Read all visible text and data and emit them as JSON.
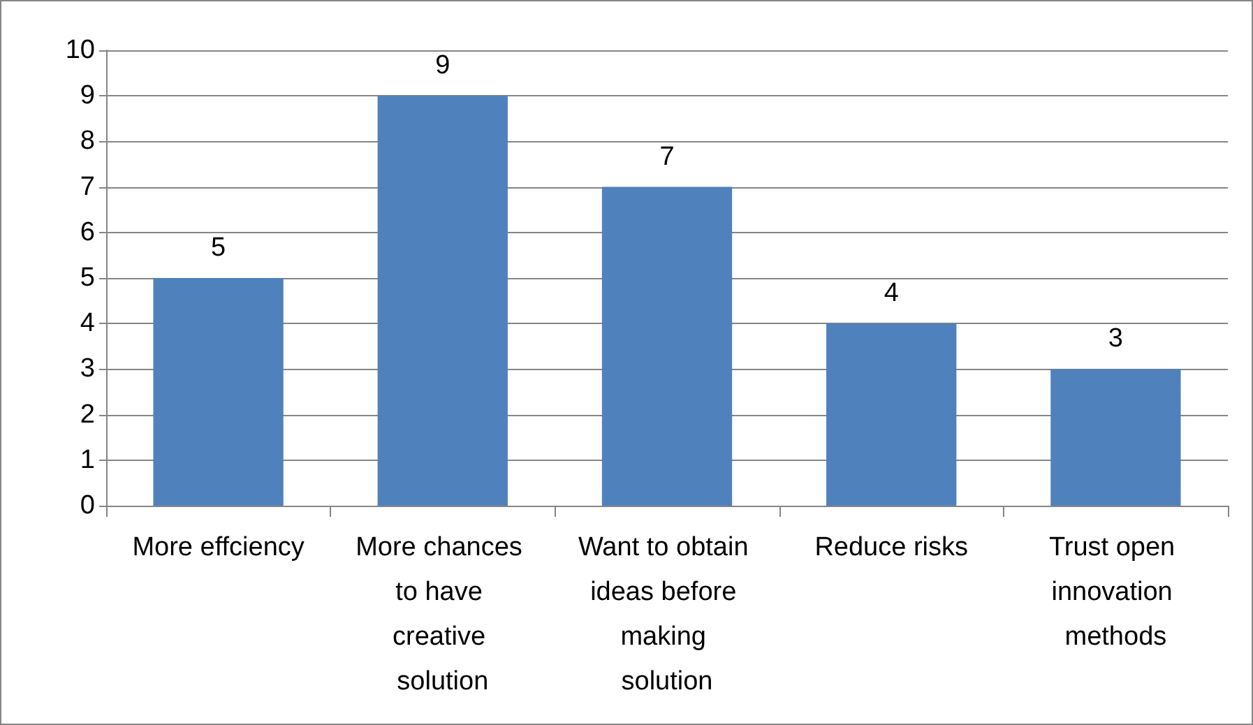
{
  "chart_data": {
    "type": "bar",
    "categories": [
      "More effciency",
      "More chances to have creative solution",
      "Want to obtain ideas before making solution",
      "Reduce risks",
      "Trust open innovation methods"
    ],
    "values": [
      5,
      9,
      7,
      4,
      3
    ],
    "color": "#4f81bd",
    "ylim": [
      0,
      10
    ],
    "yticks": [
      0,
      1,
      2,
      3,
      4,
      5,
      6,
      7,
      8,
      9,
      10
    ],
    "grid": "y",
    "data_labels": true
  }
}
